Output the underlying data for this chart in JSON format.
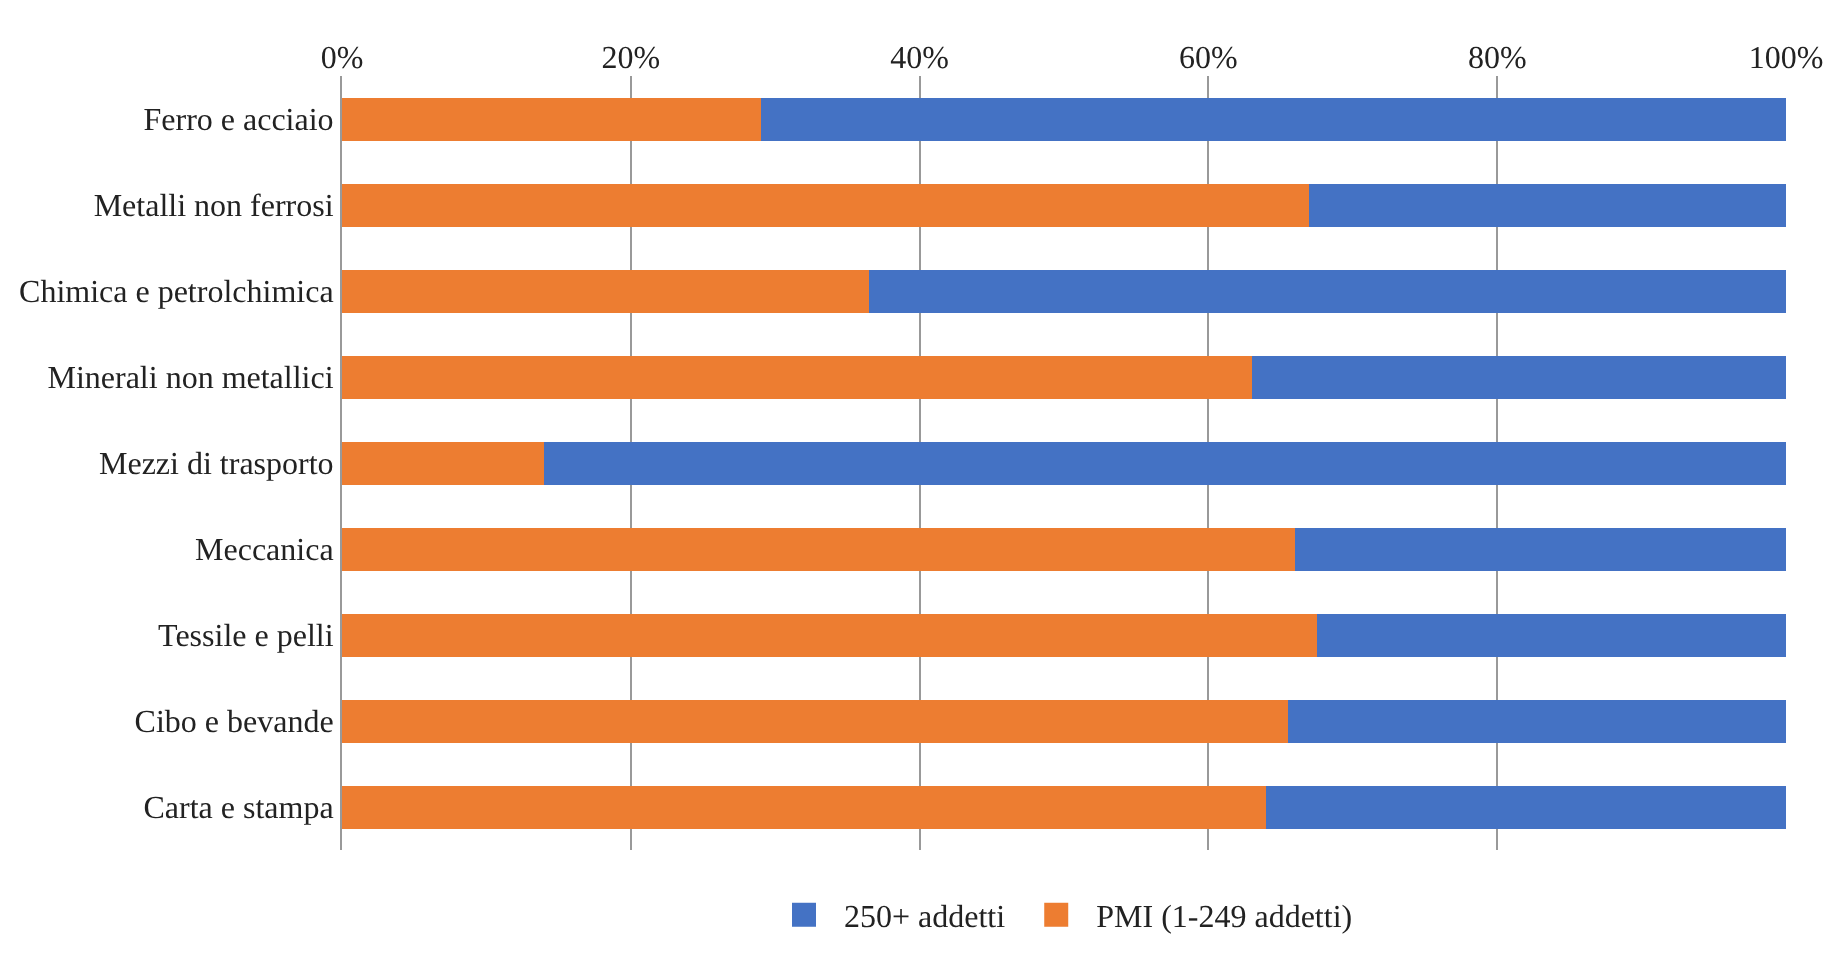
{
  "chart_data": {
    "type": "bar",
    "orientation": "horizontal",
    "stacked": true,
    "categories": [
      "Ferro e acciaio",
      "Metalli non ferrosi",
      "Chimica e petrolchimica",
      "Minerali non metallici",
      "Mezzi di trasporto",
      "Meccanica",
      "Tessile e pelli",
      "Cibo e bevande",
      "Carta e stampa"
    ],
    "series": [
      {
        "name": "PMI (1-249 addetti)",
        "color": "#ed7d31",
        "values": [
          29,
          67,
          36.5,
          63,
          14,
          66,
          67.5,
          65.5,
          64
        ]
      },
      {
        "name": "250+ addetti",
        "color": "#4472c4",
        "values": [
          71,
          33,
          63.5,
          37,
          86,
          34,
          32.5,
          34.5,
          36
        ]
      }
    ],
    "xlim": [
      0,
      100
    ],
    "xticks": [
      {
        "value": 0,
        "label": "0%"
      },
      {
        "value": 20,
        "label": "20%"
      },
      {
        "value": 40,
        "label": "40%"
      },
      {
        "value": 60,
        "label": "60%"
      },
      {
        "value": 80,
        "label": "80%"
      },
      {
        "value": 100,
        "label": "100%"
      }
    ],
    "grid": "x",
    "legend": "bottom"
  }
}
